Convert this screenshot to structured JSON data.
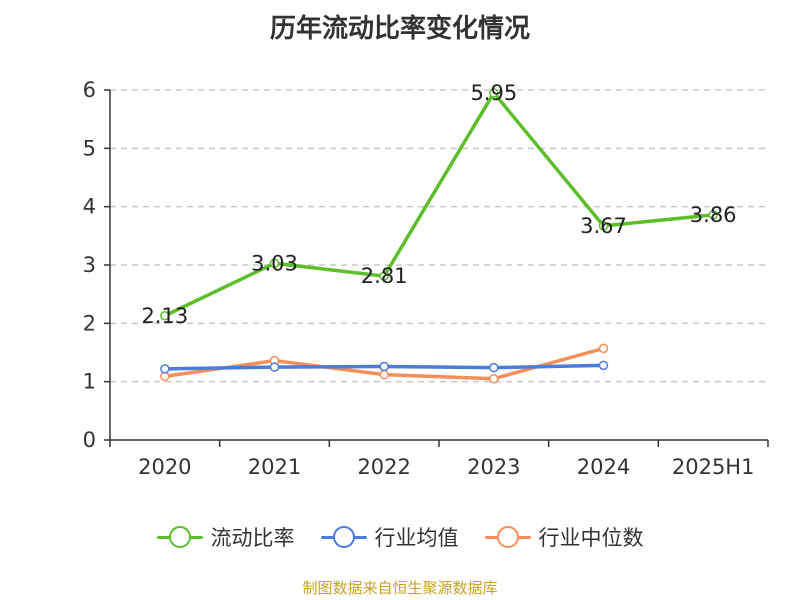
{
  "title": "历年流动比率变化情况",
  "source_note": "制图数据来自恒生聚源数据库",
  "colors": {
    "current_ratio": "#5cbf2a",
    "industry_mean": "#4b7bdc",
    "industry_median": "#f58f5a",
    "grid": "#c8c8c8",
    "axis": "#333333",
    "text": "#333333",
    "source": "#c9a227"
  },
  "chart_data": {
    "type": "line",
    "title": "历年流动比率变化情况",
    "categories": [
      "2020",
      "2021",
      "2022",
      "2023",
      "2024",
      "2025H1"
    ],
    "y_ticks": [
      0,
      1,
      2,
      3,
      4,
      5,
      6
    ],
    "ylim": [
      0,
      6
    ],
    "grid": true,
    "grid_style": "dashed",
    "legend_position": "bottom",
    "series": [
      {
        "name": "流动比率",
        "color_key": "current_ratio",
        "values": [
          2.13,
          3.03,
          2.81,
          5.95,
          3.67,
          3.86
        ],
        "labels": [
          "2.13",
          "3.03",
          "2.81",
          "5.95",
          "3.67",
          "3.86"
        ],
        "show_labels": true
      },
      {
        "name": "行业均值",
        "color_key": "industry_mean",
        "values": [
          1.22,
          1.25,
          1.26,
          1.24,
          1.28,
          null
        ],
        "show_labels": false
      },
      {
        "name": "行业中位数",
        "color_key": "industry_median",
        "values": [
          1.09,
          1.36,
          1.12,
          1.05,
          1.57,
          null
        ],
        "show_labels": false
      }
    ]
  }
}
